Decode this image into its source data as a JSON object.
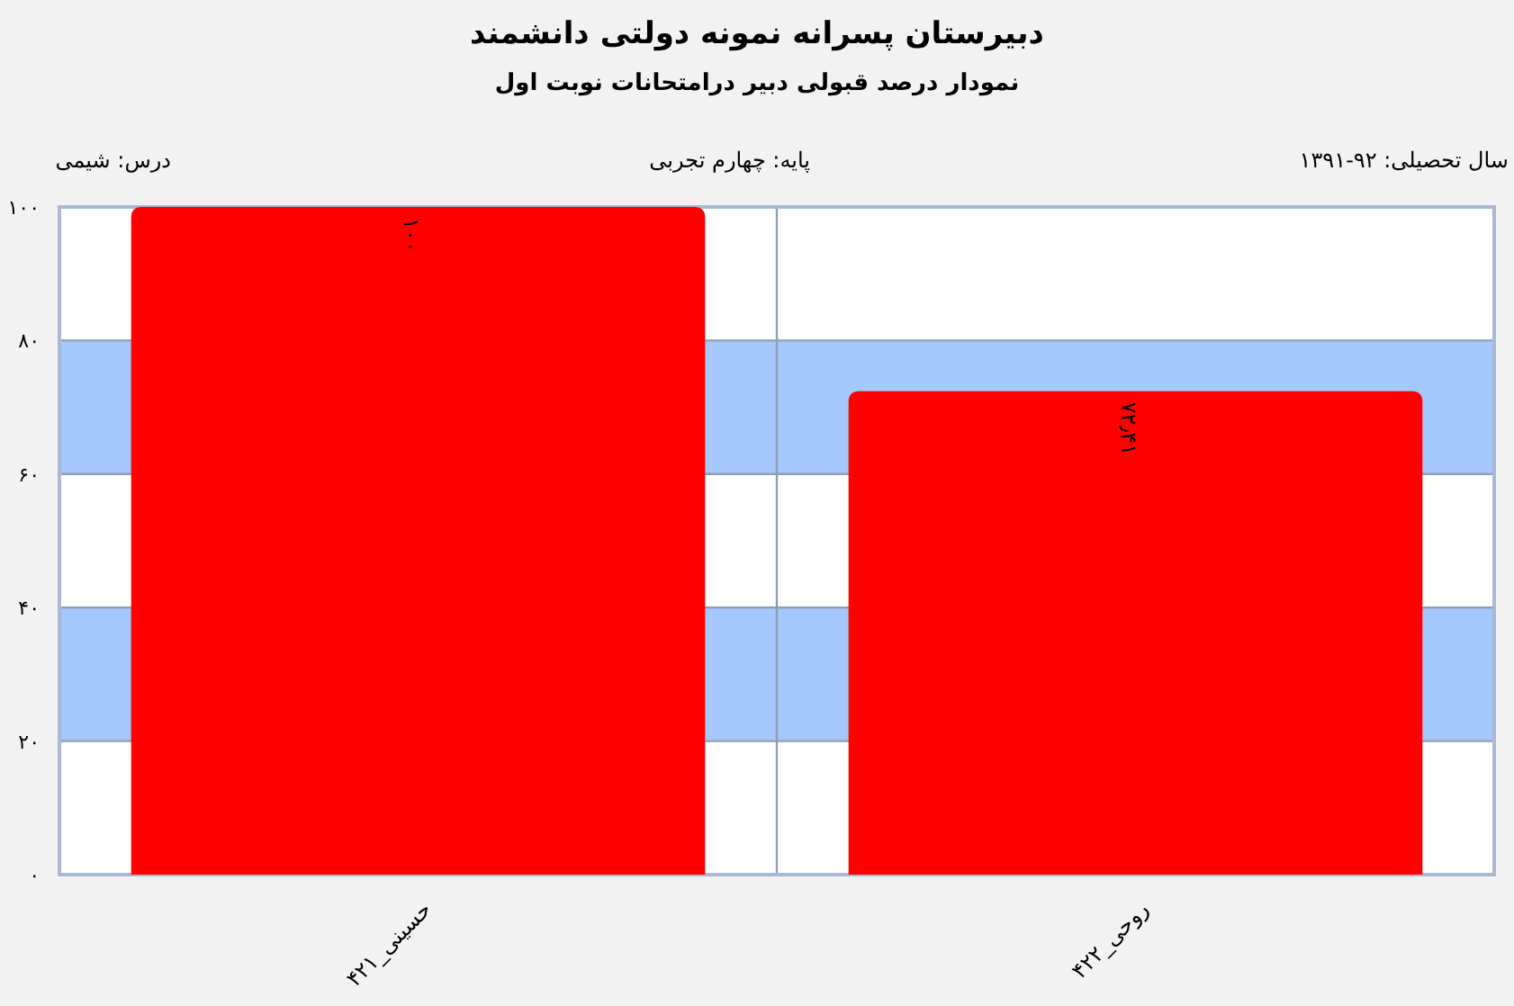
{
  "chart_data": {
    "type": "bar",
    "title": "دبیرستان پسرانه نمونه دولتی دانشمند",
    "subtitle": "نمودار درصد قبولی دبیر درامتحانات نوبت اول",
    "annotations": [
      "سال تحصیلی: ۹۲-۱۳۹۱",
      "پایه: چهارم تجربی",
      "درس: شیمی"
    ],
    "categories": [
      "حسینی_۴۲۱",
      "روحی_۴۲۲"
    ],
    "values": [
      100,
      72.41
    ],
    "value_labels": [
      "۱۰۰",
      "۷۲٫۴۱"
    ],
    "color": "#ff0000",
    "ylim": [
      0,
      100
    ],
    "yticks": [
      {
        "value": 0,
        "label": "۰"
      },
      {
        "value": 20,
        "label": "۲۰"
      },
      {
        "value": 40,
        "label": "۴۰"
      },
      {
        "value": 60,
        "label": "۶۰"
      },
      {
        "value": 80,
        "label": "۸۰"
      },
      {
        "value": 100,
        "label": "۱۰۰"
      }
    ],
    "bands": [
      {
        "axis": "y",
        "from": 20,
        "to": 40,
        "color": "#a4c8fc"
      },
      {
        "axis": "y",
        "from": 60,
        "to": 80,
        "color": "#a4c8fc"
      }
    ],
    "grid": true
  }
}
